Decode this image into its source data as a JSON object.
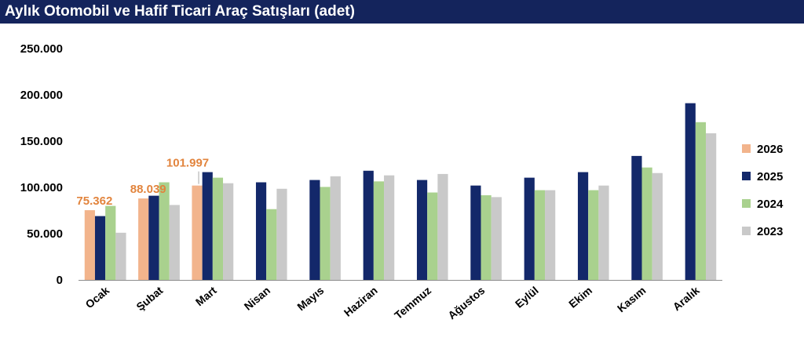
{
  "title": "Aylık Otomobil ve Hafif Ticari Araç Satışları (adet)",
  "chart_data": {
    "type": "bar",
    "title": "Aylık Otomobil ve Hafif Ticari Araç Satışları (adet)",
    "xlabel": "",
    "ylabel": "",
    "ylim": [
      0,
      250000
    ],
    "yticks": [
      0,
      50000,
      100000,
      150000,
      200000,
      250000
    ],
    "ytick_labels": [
      "0",
      "50.000",
      "100.000",
      "150.000",
      "200.000",
      "250.000"
    ],
    "grid": false,
    "legend_position": "right",
    "categories": [
      "Ocak",
      "Şubat",
      "Mart",
      "Nisan",
      "Mayıs",
      "Haziran",
      "Temmuz",
      "Ağustos",
      "Eylül",
      "Ekim",
      "Kasım",
      "Aralık"
    ],
    "series": [
      {
        "name": "2026",
        "color": "#f2b48c",
        "values": [
          75362,
          88039,
          101997,
          null,
          null,
          null,
          null,
          null,
          null,
          null,
          null,
          null
        ]
      },
      {
        "name": "2025",
        "color": "#13286a",
        "values": [
          69000,
          91000,
          116500,
          105500,
          108000,
          118000,
          108000,
          102000,
          110500,
          116500,
          134000,
          191000
        ]
      },
      {
        "name": "2024",
        "color": "#a9d18e",
        "values": [
          80000,
          105500,
          110500,
          76500,
          100500,
          106500,
          94500,
          91500,
          97000,
          97000,
          121500,
          170500
        ]
      },
      {
        "name": "2023",
        "color": "#c9c9c9",
        "values": [
          51000,
          81000,
          104500,
          98500,
          112000,
          113000,
          114500,
          89500,
          97000,
          102000,
          115500,
          158500
        ]
      }
    ],
    "data_labels": [
      {
        "series": "2026",
        "category": "Ocak",
        "text": "75.362",
        "color": "#e2843d"
      },
      {
        "series": "2026",
        "category": "Şubat",
        "text": "88.039",
        "color": "#e2843d"
      },
      {
        "series": "2026",
        "category": "Mart",
        "text": "101.997",
        "color": "#e2843d"
      }
    ]
  }
}
